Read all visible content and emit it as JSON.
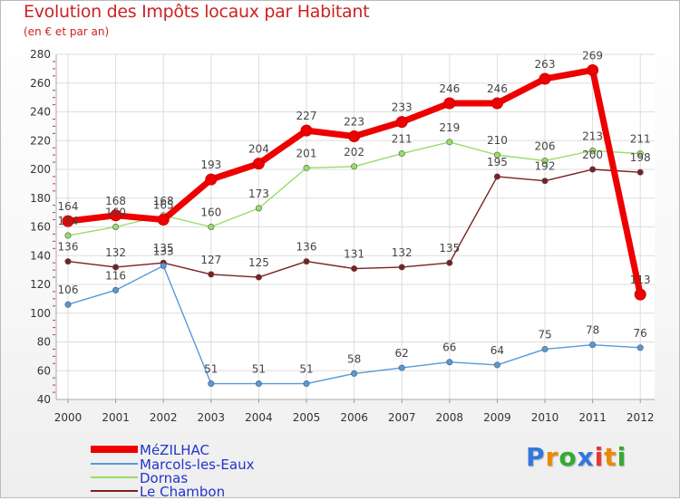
{
  "title": "Evolution des Impôts locaux par Habitant",
  "subtitle": "(en € et par an)",
  "logo": {
    "text": "Proxiti"
  },
  "chart_data": {
    "type": "line",
    "title": "Evolution des Impôts locaux par Habitant",
    "subtitle": "(en € et par an)",
    "xlabel": "",
    "ylabel": "",
    "categories": [
      "2000",
      "2001",
      "2002",
      "2003",
      "2004",
      "2005",
      "2006",
      "2007",
      "2008",
      "2009",
      "2010",
      "2011",
      "2012"
    ],
    "y_ticks": [
      "40",
      "60",
      "80",
      "100",
      "120",
      "140",
      "160",
      "180",
      "200",
      "220",
      "240",
      "260",
      "280"
    ],
    "ylim": [
      40,
      280
    ],
    "grid": true,
    "legend_position": "bottom-left",
    "series": [
      {
        "name": "Le Chambon",
        "color": "#7a2020",
        "values": [
          136,
          132,
          135,
          127,
          125,
          136,
          131,
          132,
          135,
          195,
          192,
          200,
          198
        ]
      },
      {
        "name": "Dornas",
        "color": "#99dd66",
        "values": [
          154,
          160,
          168,
          160,
          173,
          201,
          202,
          211,
          219,
          210,
          206,
          213,
          211
        ]
      },
      {
        "name": "Marcols-les-Eaux",
        "color": "#5599dd",
        "values": [
          106,
          116,
          133,
          51,
          51,
          51,
          58,
          62,
          66,
          64,
          75,
          78,
          76
        ]
      },
      {
        "name": "MéZILHAC",
        "color": "#ee0000",
        "values": [
          164,
          168,
          165,
          193,
          204,
          227,
          223,
          233,
          246,
          246,
          263,
          269,
          113
        ]
      }
    ],
    "legend": [
      "MéZILHAC",
      "Marcols-les-Eaux",
      "Dornas",
      "Le Chambon"
    ]
  }
}
